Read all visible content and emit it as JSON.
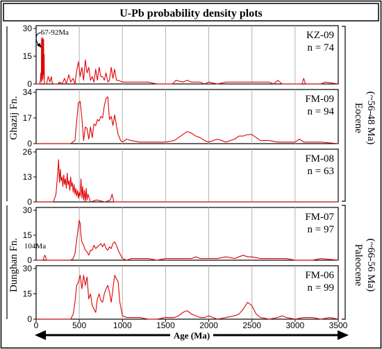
{
  "figure": {
    "title": "U-Pb probability density plots",
    "xlabel": "Age (Ma)",
    "group_labels": [
      {
        "formation": "Ghazij Fn.",
        "epoch": "Eocene",
        "age": "(~56-48 Ma)"
      },
      {
        "formation": "Dunghan Fn.",
        "epoch": "Paleocene",
        "age": "(~66-56 Ma)"
      }
    ]
  },
  "colors": {
    "curve": "#e00000",
    "frame": "#000000",
    "grid": "#b0b0b0"
  },
  "chart_data": [
    {
      "type": "line",
      "sample": "KZ-09",
      "n": "n = 74",
      "xlim": [
        0,
        3500
      ],
      "ylim": [
        0,
        30
      ],
      "yticks": [
        0,
        15,
        30
      ],
      "annotation": {
        "text": "67-92Ma",
        "x": 70,
        "y": 26
      },
      "x": [
        0,
        40,
        50,
        55,
        60,
        63,
        66,
        69,
        72,
        75,
        78,
        81,
        84,
        87,
        90,
        93,
        96,
        100,
        120,
        140,
        160,
        175,
        185,
        200,
        220,
        250,
        270,
        300,
        330,
        350,
        380,
        400,
        430,
        450,
        470,
        490,
        510,
        530,
        550,
        570,
        590,
        610,
        630,
        650,
        670,
        690,
        710,
        730,
        750,
        770,
        790,
        810,
        830,
        850,
        870,
        890,
        910,
        930,
        950,
        1000,
        1100,
        1200,
        1300,
        1400,
        1500,
        1580,
        1620,
        1700,
        1750,
        1800,
        1850,
        1900,
        1950,
        2000,
        2100,
        2200,
        2300,
        2400,
        2500,
        2600,
        2700,
        2750,
        2800,
        2850,
        2900,
        3000,
        3080,
        3100,
        3120,
        3200,
        3300,
        3350,
        3500
      ],
      "values": [
        0,
        0,
        2,
        6,
        1,
        25,
        3,
        18,
        24,
        2,
        25,
        5,
        24,
        24,
        3,
        16,
        1,
        0,
        0,
        4,
        1,
        4,
        1,
        0,
        0,
        0,
        1,
        0,
        3,
        0,
        5,
        1,
        3,
        0,
        7,
        12,
        4,
        9,
        2,
        13,
        6,
        9,
        2,
        4,
        1,
        8,
        2,
        9,
        4,
        4,
        2,
        6,
        1,
        2,
        9,
        3,
        8,
        2,
        2,
        1,
        1,
        1,
        1,
        0,
        0,
        0,
        2,
        1,
        2,
        1,
        1,
        1,
        0,
        1,
        0,
        1,
        1,
        1,
        1,
        1,
        1,
        0,
        2,
        0,
        0,
        0,
        0,
        3,
        0,
        0,
        0,
        1,
        0
      ]
    },
    {
      "type": "line",
      "sample": "FM-09",
      "n": "n = 94",
      "xlim": [
        0,
        3500
      ],
      "ylim": [
        0,
        34
      ],
      "yticks": [
        0,
        17,
        34
      ],
      "x": [
        0,
        300,
        400,
        450,
        470,
        490,
        510,
        530,
        550,
        570,
        590,
        610,
        630,
        650,
        670,
        690,
        710,
        730,
        750,
        770,
        790,
        810,
        830,
        850,
        870,
        890,
        910,
        930,
        950,
        980,
        1000,
        1050,
        1100,
        1200,
        1300,
        1400,
        1500,
        1600,
        1650,
        1700,
        1750,
        1800,
        1850,
        1900,
        1950,
        2000,
        2100,
        2200,
        2300,
        2350,
        2400,
        2450,
        2500,
        2550,
        2600,
        2700,
        2800,
        2900,
        3000,
        3050,
        3100,
        3200,
        3300,
        3500
      ],
      "values": [
        0,
        0,
        0,
        2,
        15,
        27,
        28,
        17,
        2,
        11,
        10,
        3,
        11,
        4,
        13,
        12,
        16,
        15,
        18,
        17,
        25,
        30,
        31,
        16,
        18,
        12,
        19,
        12,
        6,
        2,
        1,
        3,
        2,
        1,
        1,
        1,
        1,
        2,
        4,
        6,
        8,
        7,
        5,
        4,
        2,
        1,
        3,
        1,
        3,
        5,
        5,
        6,
        6,
        4,
        2,
        2,
        1,
        1,
        1,
        3,
        1,
        1,
        1,
        0
      ]
    },
    {
      "type": "line",
      "sample": "FM-08",
      "n": "n = 63",
      "xlim": [
        0,
        3500
      ],
      "ylim": [
        0,
        26
      ],
      "yticks": [
        0,
        13,
        26
      ],
      "x": [
        0,
        200,
        230,
        250,
        260,
        270,
        280,
        290,
        300,
        310,
        320,
        330,
        340,
        350,
        360,
        370,
        380,
        390,
        400,
        410,
        420,
        430,
        440,
        450,
        460,
        470,
        480,
        490,
        500,
        510,
        520,
        530,
        540,
        550,
        560,
        570,
        580,
        590,
        600,
        630,
        700,
        800,
        860,
        880,
        900,
        1000,
        1300,
        1500,
        2000,
        3500
      ],
      "values": [
        0,
        0,
        4,
        15,
        22,
        10,
        17,
        11,
        13,
        8,
        14,
        9,
        12,
        7,
        15,
        9,
        11,
        6,
        13,
        8,
        10,
        5,
        9,
        4,
        7,
        3,
        6,
        2,
        5,
        3,
        12,
        2,
        8,
        1,
        6,
        0,
        7,
        1,
        4,
        0,
        1,
        0,
        1,
        4,
        0,
        0,
        0,
        0,
        0,
        0
      ]
    },
    {
      "type": "line",
      "sample": "FM-07",
      "n": "n = 97",
      "xlim": [
        0,
        3500
      ],
      "ylim": [
        0,
        30
      ],
      "yticks": [
        0,
        15,
        30
      ],
      "annotation": {
        "text": "104Ma",
        "x": 104,
        "y": 3
      },
      "x": [
        0,
        80,
        100,
        110,
        120,
        150,
        300,
        400,
        430,
        450,
        470,
        490,
        500,
        510,
        520,
        530,
        550,
        570,
        590,
        610,
        630,
        650,
        670,
        690,
        710,
        730,
        750,
        770,
        790,
        810,
        830,
        850,
        870,
        890,
        910,
        930,
        950,
        980,
        1000,
        1050,
        1100,
        1200,
        1300,
        1400,
        1500,
        1600,
        1700,
        1800,
        1850,
        1900,
        2000,
        2100,
        2200,
        2300,
        2350,
        2400,
        2450,
        2500,
        2600,
        2700,
        2800,
        2900,
        3000,
        3200,
        3300,
        3500
      ],
      "values": [
        0,
        0,
        3,
        2,
        0,
        0,
        0,
        0,
        1,
        4,
        12,
        20,
        24,
        22,
        15,
        11,
        9,
        6,
        5,
        3,
        6,
        6,
        9,
        7,
        8,
        9,
        10,
        8,
        10,
        7,
        6,
        8,
        7,
        10,
        11,
        9,
        6,
        3,
        1,
        0,
        1,
        1,
        1,
        0,
        1,
        1,
        1,
        1,
        2,
        1,
        1,
        1,
        2,
        1,
        2,
        3,
        2,
        2,
        1,
        1,
        1,
        1,
        0,
        0,
        1,
        0
      ]
    },
    {
      "type": "line",
      "sample": "FM-06",
      "n": "n = 99",
      "xlim": [
        0,
        3500
      ],
      "ylim": [
        0,
        30
      ],
      "yticks": [
        0,
        15,
        30
      ],
      "x": [
        0,
        400,
        430,
        450,
        470,
        490,
        510,
        530,
        550,
        570,
        590,
        610,
        630,
        650,
        670,
        690,
        710,
        730,
        750,
        770,
        790,
        810,
        830,
        850,
        870,
        890,
        910,
        930,
        950,
        970,
        1000,
        1050,
        1100,
        1200,
        1300,
        1400,
        1500,
        1600,
        1650,
        1700,
        1750,
        1800,
        1850,
        1900,
        1950,
        2000,
        2050,
        2100,
        2200,
        2300,
        2350,
        2400,
        2450,
        2500,
        2550,
        2600,
        2700,
        2800,
        2850,
        2900,
        3000,
        3100,
        3200,
        3300,
        3400,
        3500
      ],
      "values": [
        0,
        0,
        3,
        10,
        20,
        22,
        26,
        18,
        26,
        20,
        25,
        12,
        15,
        8,
        6,
        4,
        12,
        15,
        11,
        10,
        15,
        18,
        20,
        16,
        10,
        18,
        26,
        24,
        22,
        10,
        2,
        1,
        1,
        1,
        0,
        0,
        1,
        1,
        2,
        4,
        5,
        3,
        2,
        1,
        1,
        2,
        1,
        0,
        1,
        2,
        3,
        6,
        10,
        8,
        3,
        1,
        0,
        1,
        2,
        1,
        0,
        1,
        1,
        0,
        1,
        0
      ]
    }
  ]
}
